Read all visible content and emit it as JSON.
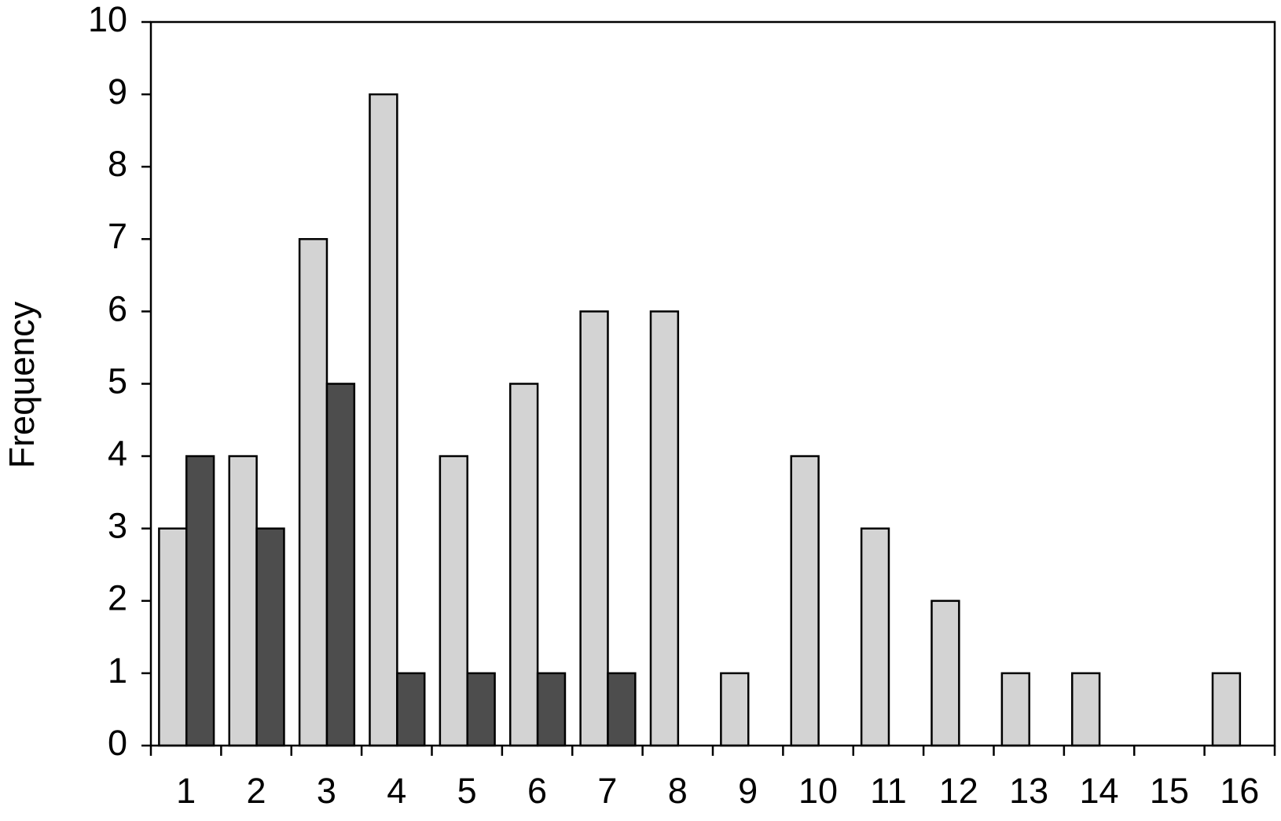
{
  "chart_data": {
    "type": "bar",
    "y_label": "Frequency",
    "categories": [
      "1",
      "2",
      "3",
      "4",
      "5",
      "6",
      "7",
      "8",
      "9",
      "10",
      "11",
      "12",
      "13",
      "14",
      "15",
      "16"
    ],
    "series": [
      {
        "color": "#d3d3d3",
        "values": [
          3,
          4,
          7,
          9,
          4,
          5,
          6,
          6,
          1,
          4,
          3,
          2,
          1,
          1,
          0,
          1
        ]
      },
      {
        "color": "#4d4d4d",
        "values": [
          4,
          3,
          5,
          1,
          1,
          1,
          1,
          0,
          0,
          0,
          0,
          0,
          0,
          0,
          0,
          0
        ]
      }
    ],
    "ylim": [
      0,
      10
    ],
    "yticks": [
      0,
      1,
      2,
      3,
      4,
      5,
      6,
      7,
      8,
      9,
      10
    ],
    "grid": false
  }
}
